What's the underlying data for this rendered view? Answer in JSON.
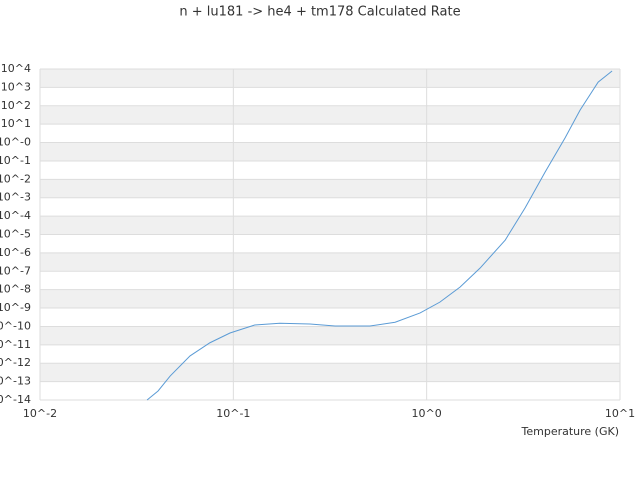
{
  "chart_data": {
    "type": "line",
    "title": "n + lu181 -> he4 + tm178 Calculated Rate",
    "x_label": "Temperature (GK)",
    "xlog": true,
    "ylog": true,
    "grid": true,
    "color": "#5b9bd5",
    "xlim": [
      0.01,
      10
    ],
    "ylim": [
      1e-14,
      10000
    ],
    "xticks": [
      {
        "value": 0.01,
        "label": "10^-2"
      },
      {
        "value": 0.1,
        "label": "10^-1"
      },
      {
        "value": 1,
        "label": "10^0"
      },
      {
        "value": 10,
        "label": "10^1"
      }
    ],
    "yticks": [
      {
        "value": 1e-14,
        "label": "10^-14"
      },
      {
        "value": 1e-13,
        "label": "10^-13"
      },
      {
        "value": 1e-12,
        "label": "10^-12"
      },
      {
        "value": 1e-11,
        "label": "10^-11"
      },
      {
        "value": 1e-10,
        "label": "10^-10"
      },
      {
        "value": 1e-09,
        "label": "10^-9"
      },
      {
        "value": 1e-08,
        "label": "10^-8"
      },
      {
        "value": 1e-07,
        "label": "10^-7"
      },
      {
        "value": 1e-06,
        "label": "10^-6"
      },
      {
        "value": 1e-05,
        "label": "10^-5"
      },
      {
        "value": 0.0001,
        "label": "10^-4"
      },
      {
        "value": 0.001,
        "label": "10^-3"
      },
      {
        "value": 0.01,
        "label": "10^-2"
      },
      {
        "value": 0.1,
        "label": "10^-1"
      },
      {
        "value": 1,
        "label": "10^-0"
      },
      {
        "value": 10,
        "label": "10^1"
      },
      {
        "value": 100,
        "label": "10^2"
      },
      {
        "value": 1000,
        "label": "10^3"
      },
      {
        "value": 10000,
        "label": "10^4"
      }
    ],
    "x": [
      0.0358,
      0.0408,
      0.0471,
      0.0597,
      0.0757,
      0.0961,
      0.129,
      0.174,
      0.249,
      0.336,
      0.509,
      0.687,
      0.925,
      1.17,
      1.49,
      1.89,
      2.55,
      3.23,
      4.1,
      5.2,
      6.22,
      7.71,
      9.1
    ],
    "values": [
      1e-14,
      3.1e-14,
      2e-13,
      2.5e-12,
      1.3e-11,
      4.4e-11,
      1.2e-10,
      1.5e-10,
      1.35e-10,
      1.05e-10,
      1.05e-10,
      1.7e-10,
      5.4e-10,
      2.1e-09,
      1.4e-08,
      1.5e-07,
      5e-06,
      0.00028,
      0.025,
      1.8,
      59,
      1950,
      7800
    ]
  }
}
